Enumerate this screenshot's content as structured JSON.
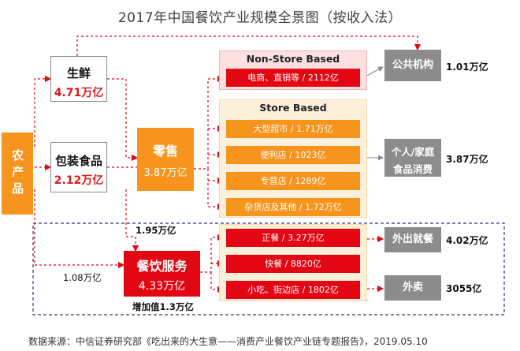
{
  "title": "2017年中国餐饮产业规模全景图（按收入法）",
  "source_prefix": "数据来源：中信证券研究部《",
  "source_title": "吃出来的大生意——消费产业餐饮产业链专题报告",
  "source_suffix": "》，2019.05.10",
  "agri": {
    "label": "农产品"
  },
  "fresh": {
    "name": "生鲜",
    "value": "4.71万亿"
  },
  "packaged": {
    "name": "包装食品",
    "value": "2.12万亿"
  },
  "retail": {
    "name": "零售",
    "value": "3.87万亿"
  },
  "catering": {
    "name": "餐饮服务",
    "value": "4.33万亿"
  },
  "flows": {
    "to_catering": "1.95万亿",
    "agri_to_catering": "1.08万亿",
    "value_added": "增加值1.3万亿"
  },
  "non_store": {
    "title": "Non-Store Based",
    "items": [
      {
        "label": "电商、直销等 / 2112亿"
      }
    ]
  },
  "store": {
    "title": "Store Based",
    "items": [
      {
        "label": "大型超市 / 1.71万亿"
      },
      {
        "label": "便利店 / 1023亿"
      },
      {
        "label": "专营店 / 1289亿"
      },
      {
        "label": "杂货店及其他 / 1.72万亿"
      }
    ]
  },
  "catering_items": [
    {
      "label": "正餐 / 3.27万亿"
    },
    {
      "label": "快餐 / 8820亿"
    },
    {
      "label": "小吃、街边店 / 1802亿"
    }
  ],
  "outputs": {
    "public": {
      "name": "公共机构",
      "value": "1.01万亿"
    },
    "household": {
      "name_line1": "个人/家庭",
      "name_line2": "食品消费",
      "value": "3.87万亿"
    },
    "dine_out": {
      "name": "外出就餐",
      "value": "4.02万亿"
    },
    "takeaway": {
      "name": "外卖",
      "value": "3055亿"
    }
  },
  "colors": {
    "orange": "#f7941d",
    "red": "#e30613",
    "gray": "#8c8c8c",
    "pink_panel": "#fde1e1",
    "cream_panel": "#fdf0db"
  }
}
